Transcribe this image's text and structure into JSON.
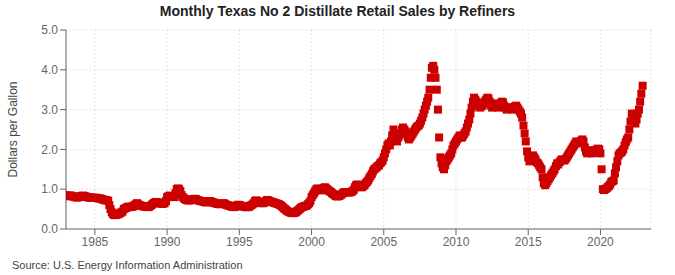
{
  "chart_data": {
    "type": "scatter",
    "title": "Monthly Texas No 2 Distillate Retail Sales by Refiners",
    "ylabel": "Dollars per Gallon",
    "annotations": [
      "Source: U.S. Energy Information Administration"
    ],
    "color": "#cc0000",
    "marker": "square",
    "grid": true,
    "xlim": [
      1983.0,
      2023.5
    ],
    "xticks": [
      1985,
      1990,
      1995,
      2000,
      2005,
      2010,
      2015,
      2020
    ],
    "ylim": [
      0.0,
      5.0
    ],
    "yticks": [
      {
        "value": 0.0,
        "label": "0.0"
      },
      {
        "value": 1.0,
        "label": "1.0"
      },
      {
        "value": 2.0,
        "label": "2.0"
      },
      {
        "value": 3.0,
        "label": "3.0"
      },
      {
        "value": 4.0,
        "label": "4.0"
      },
      {
        "value": 5.0,
        "label": "5.0"
      }
    ],
    "x": [
      1983.0,
      1983.08,
      1983.17,
      1983.25,
      1983.33,
      1983.42,
      1983.5,
      1983.58,
      1983.67,
      1983.75,
      1983.83,
      1983.92,
      1984.0,
      1984.08,
      1984.17,
      1984.25,
      1984.33,
      1984.42,
      1984.5,
      1984.58,
      1984.67,
      1984.75,
      1984.83,
      1984.92,
      1985.0,
      1985.08,
      1985.17,
      1985.25,
      1985.33,
      1985.42,
      1985.5,
      1985.58,
      1985.67,
      1985.75,
      1985.83,
      1985.92,
      1986.0,
      1986.08,
      1986.17,
      1986.25,
      1986.33,
      1986.42,
      1986.5,
      1986.58,
      1986.67,
      1986.75,
      1986.83,
      1986.92,
      1987.0,
      1987.08,
      1987.17,
      1987.25,
      1987.33,
      1987.42,
      1987.5,
      1987.58,
      1987.67,
      1987.75,
      1987.83,
      1987.92,
      1988.0,
      1988.08,
      1988.17,
      1988.25,
      1988.33,
      1988.42,
      1988.5,
      1988.58,
      1988.67,
      1988.75,
      1988.83,
      1988.92,
      1989.0,
      1989.08,
      1989.17,
      1989.25,
      1989.33,
      1989.42,
      1989.5,
      1989.58,
      1989.67,
      1989.75,
      1989.83,
      1989.92,
      1990.0,
      1990.08,
      1990.17,
      1990.25,
      1990.33,
      1990.42,
      1990.5,
      1990.58,
      1990.67,
      1990.75,
      1990.83,
      1990.92,
      1991.0,
      1991.08,
      1991.17,
      1991.25,
      1991.33,
      1991.42,
      1991.5,
      1991.58,
      1991.67,
      1991.75,
      1991.83,
      1991.92,
      1992.0,
      1992.08,
      1992.17,
      1992.25,
      1992.33,
      1992.42,
      1992.5,
      1992.58,
      1992.67,
      1992.75,
      1992.83,
      1992.92,
      1993.0,
      1993.08,
      1993.17,
      1993.25,
      1993.33,
      1993.42,
      1993.5,
      1993.58,
      1993.67,
      1993.75,
      1993.83,
      1993.92,
      1994.0,
      1994.08,
      1994.17,
      1994.25,
      1994.33,
      1994.42,
      1994.5,
      1994.58,
      1994.67,
      1994.75,
      1994.83,
      1994.92,
      1995.0,
      1995.08,
      1995.17,
      1995.25,
      1995.33,
      1995.42,
      1995.5,
      1995.58,
      1995.67,
      1995.75,
      1995.83,
      1995.92,
      1996.0,
      1996.08,
      1996.17,
      1996.25,
      1996.33,
      1996.42,
      1996.5,
      1996.58,
      1996.67,
      1996.75,
      1996.83,
      1996.92,
      1997.0,
      1997.08,
      1997.17,
      1997.25,
      1997.33,
      1997.42,
      1997.5,
      1997.58,
      1997.67,
      1997.75,
      1997.83,
      1997.92,
      1998.0,
      1998.08,
      1998.17,
      1998.25,
      1998.33,
      1998.42,
      1998.5,
      1998.58,
      1998.67,
      1998.75,
      1998.83,
      1998.92,
      1999.0,
      1999.08,
      1999.17,
      1999.25,
      1999.33,
      1999.42,
      1999.5,
      1999.58,
      1999.67,
      1999.75,
      1999.83,
      1999.92,
      2000.0,
      2000.08,
      2000.17,
      2000.25,
      2000.33,
      2000.42,
      2000.5,
      2000.58,
      2000.67,
      2000.75,
      2000.83,
      2000.92,
      2001.0,
      2001.08,
      2001.17,
      2001.25,
      2001.33,
      2001.42,
      2001.5,
      2001.58,
      2001.67,
      2001.75,
      2001.83,
      2001.92,
      2002.0,
      2002.08,
      2002.17,
      2002.25,
      2002.33,
      2002.42,
      2002.5,
      2002.58,
      2002.67,
      2002.75,
      2002.83,
      2002.92,
      2003.0,
      2003.08,
      2003.17,
      2003.25,
      2003.33,
      2003.42,
      2003.5,
      2003.58,
      2003.67,
      2003.75,
      2003.83,
      2003.92,
      2004.0,
      2004.08,
      2004.17,
      2004.25,
      2004.33,
      2004.42,
      2004.5,
      2004.58,
      2004.67,
      2004.75,
      2004.83,
      2004.92,
      2005.0,
      2005.08,
      2005.17,
      2005.25,
      2005.33,
      2005.42,
      2005.5,
      2005.58,
      2005.67,
      2005.75,
      2005.83,
      2005.92,
      2006.0,
      2006.08,
      2006.17,
      2006.25,
      2006.33,
      2006.42,
      2006.5,
      2006.58,
      2006.67,
      2006.75,
      2006.83,
      2006.92,
      2007.0,
      2007.08,
      2007.17,
      2007.25,
      2007.33,
      2007.42,
      2007.5,
      2007.58,
      2007.67,
      2007.75,
      2007.83,
      2007.92,
      2008.0,
      2008.08,
      2008.17,
      2008.25,
      2008.33,
      2008.42,
      2008.5,
      2008.58,
      2008.67,
      2008.75,
      2008.83,
      2008.92,
      2009.0,
      2009.08,
      2009.17,
      2009.25,
      2009.33,
      2009.42,
      2009.5,
      2009.58,
      2009.67,
      2009.75,
      2009.83,
      2009.92,
      2010.0,
      2010.08,
      2010.17,
      2010.25,
      2010.33,
      2010.42,
      2010.5,
      2010.58,
      2010.67,
      2010.75,
      2010.83,
      2010.92,
      2011.0,
      2011.08,
      2011.17,
      2011.25,
      2011.33,
      2011.42,
      2011.5,
      2011.58,
      2011.67,
      2011.75,
      2011.83,
      2011.92,
      2012.0,
      2012.08,
      2012.17,
      2012.25,
      2012.33,
      2012.42,
      2012.5,
      2012.58,
      2012.67,
      2012.75,
      2012.83,
      2012.92,
      2013.0,
      2013.08,
      2013.17,
      2013.25,
      2013.33,
      2013.42,
      2013.5,
      2013.58,
      2013.67,
      2013.75,
      2013.83,
      2013.92,
      2014.0,
      2014.08,
      2014.17,
      2014.25,
      2014.33,
      2014.42,
      2014.5,
      2014.58,
      2014.67,
      2014.75,
      2014.83,
      2014.92,
      2015.0,
      2015.08,
      2015.17,
      2015.25,
      2015.33,
      2015.42,
      2015.5,
      2015.58,
      2015.67,
      2015.75,
      2015.83,
      2015.92,
      2016.0,
      2016.08,
      2016.17,
      2016.25,
      2016.33,
      2016.42,
      2016.5,
      2016.58,
      2016.67,
      2016.75,
      2016.83,
      2016.92,
      2017.0,
      2017.08,
      2017.17,
      2017.25,
      2017.33,
      2017.42,
      2017.5,
      2017.58,
      2017.67,
      2017.75,
      2017.83,
      2017.92,
      2018.0,
      2018.08,
      2018.17,
      2018.25,
      2018.33,
      2018.42,
      2018.5,
      2018.58,
      2018.67,
      2018.75,
      2018.83,
      2018.92,
      2019.0,
      2019.08,
      2019.17,
      2019.25,
      2019.33,
      2019.42,
      2019.5,
      2019.58,
      2019.67,
      2019.75,
      2019.83,
      2019.92,
      2020.0,
      2020.08,
      2020.17,
      2020.25,
      2020.33,
      2020.42,
      2020.5,
      2020.58,
      2020.67,
      2020.75,
      2020.83,
      2020.92,
      2021.0,
      2021.08,
      2021.17,
      2021.25,
      2021.33,
      2021.42,
      2021.5,
      2021.58,
      2021.67,
      2021.75,
      2021.83,
      2021.92,
      2022.0,
      2022.08,
      2022.17,
      2022.25,
      2022.33,
      2022.42,
      2022.5,
      2022.58,
      2022.67,
      2022.75,
      2022.83,
      2022.92
    ],
    "values": [
      0.85,
      0.83,
      0.82,
      0.84,
      0.84,
      0.83,
      0.82,
      0.81,
      0.8,
      0.79,
      0.8,
      0.8,
      0.82,
      0.83,
      0.84,
      0.83,
      0.82,
      0.81,
      0.8,
      0.79,
      0.79,
      0.79,
      0.78,
      0.78,
      0.79,
      0.78,
      0.78,
      0.77,
      0.77,
      0.76,
      0.75,
      0.74,
      0.72,
      0.73,
      0.72,
      0.71,
      0.6,
      0.5,
      0.42,
      0.38,
      0.35,
      0.35,
      0.36,
      0.37,
      0.38,
      0.4,
      0.42,
      0.44,
      0.5,
      0.52,
      0.53,
      0.55,
      0.56,
      0.56,
      0.55,
      0.56,
      0.57,
      0.6,
      0.62,
      0.65,
      0.62,
      0.6,
      0.59,
      0.58,
      0.57,
      0.57,
      0.56,
      0.56,
      0.55,
      0.56,
      0.58,
      0.6,
      0.63,
      0.65,
      0.67,
      0.68,
      0.67,
      0.66,
      0.65,
      0.64,
      0.63,
      0.64,
      0.65,
      0.7,
      0.8,
      0.82,
      0.84,
      0.83,
      0.82,
      0.81,
      0.8,
      0.9,
      1.0,
      1.02,
      1.0,
      0.95,
      0.85,
      0.8,
      0.77,
      0.75,
      0.73,
      0.72,
      0.72,
      0.72,
      0.73,
      0.74,
      0.75,
      0.76,
      0.75,
      0.73,
      0.72,
      0.71,
      0.7,
      0.7,
      0.69,
      0.68,
      0.67,
      0.67,
      0.68,
      0.7,
      0.7,
      0.68,
      0.67,
      0.66,
      0.65,
      0.64,
      0.63,
      0.63,
      0.62,
      0.63,
      0.64,
      0.65,
      0.63,
      0.61,
      0.6,
      0.59,
      0.58,
      0.57,
      0.56,
      0.56,
      0.55,
      0.57,
      0.59,
      0.61,
      0.6,
      0.59,
      0.58,
      0.57,
      0.56,
      0.55,
      0.55,
      0.55,
      0.56,
      0.58,
      0.6,
      0.62,
      0.65,
      0.7,
      0.72,
      0.7,
      0.68,
      0.67,
      0.65,
      0.65,
      0.65,
      0.67,
      0.7,
      0.73,
      0.72,
      0.7,
      0.69,
      0.68,
      0.67,
      0.66,
      0.65,
      0.64,
      0.63,
      0.62,
      0.6,
      0.58,
      0.55,
      0.52,
      0.5,
      0.47,
      0.45,
      0.43,
      0.42,
      0.41,
      0.4,
      0.4,
      0.41,
      0.42,
      0.45,
      0.47,
      0.5,
      0.53,
      0.55,
      0.56,
      0.57,
      0.58,
      0.59,
      0.62,
      0.65,
      0.7,
      0.8,
      0.85,
      0.9,
      0.95,
      1.0,
      1.02,
      1.0,
      0.98,
      0.97,
      1.0,
      1.02,
      1.05,
      1.02,
      1.0,
      0.97,
      0.95,
      0.93,
      0.9,
      0.88,
      0.86,
      0.83,
      0.82,
      0.82,
      0.83,
      0.85,
      0.87,
      0.9,
      0.92,
      0.93,
      0.93,
      0.92,
      0.92,
      0.92,
      0.93,
      0.95,
      0.98,
      1.05,
      1.1,
      1.12,
      1.1,
      1.08,
      1.05,
      1.05,
      1.08,
      1.1,
      1.15,
      1.18,
      1.22,
      1.28,
      1.33,
      1.38,
      1.45,
      1.5,
      1.52,
      1.55,
      1.58,
      1.6,
      1.65,
      1.68,
      1.72,
      1.8,
      1.9,
      2.0,
      2.1,
      2.15,
      2.1,
      2.2,
      2.35,
      2.5,
      2.4,
      2.3,
      2.2,
      2.3,
      2.35,
      2.4,
      2.5,
      2.55,
      2.5,
      2.45,
      2.4,
      2.3,
      2.25,
      2.3,
      2.35,
      2.4,
      2.45,
      2.5,
      2.55,
      2.58,
      2.6,
      2.65,
      2.72,
      2.8,
      2.9,
      3.0,
      3.1,
      3.2,
      3.3,
      3.5,
      3.8,
      4.05,
      4.1,
      4.0,
      3.8,
      3.5,
      3.0,
      2.3,
      1.8,
      1.65,
      1.55,
      1.5,
      1.6,
      1.7,
      1.75,
      1.8,
      1.85,
      1.9,
      2.0,
      2.1,
      2.15,
      2.2,
      2.25,
      2.3,
      2.35,
      2.3,
      2.3,
      2.35,
      2.4,
      2.45,
      2.55,
      2.65,
      2.75,
      2.9,
      3.05,
      3.2,
      3.3,
      3.25,
      3.2,
      3.15,
      3.1,
      3.05,
      3.08,
      3.1,
      3.15,
      3.2,
      3.25,
      3.3,
      3.28,
      3.2,
      3.1,
      3.05,
      3.1,
      3.15,
      3.15,
      3.1,
      3.05,
      3.1,
      3.15,
      3.2,
      3.18,
      3.1,
      3.05,
      3.0,
      3.02,
      3.05,
      3.05,
      3.05,
      3.0,
      3.05,
      3.08,
      3.1,
      3.05,
      3.0,
      2.95,
      2.9,
      2.8,
      2.6,
      2.4,
      2.2,
      1.95,
      1.8,
      1.7,
      1.75,
      1.8,
      1.85,
      1.8,
      1.75,
      1.68,
      1.65,
      1.6,
      1.55,
      1.5,
      1.3,
      1.15,
      1.1,
      1.15,
      1.2,
      1.25,
      1.3,
      1.35,
      1.4,
      1.45,
      1.5,
      1.58,
      1.65,
      1.62,
      1.68,
      1.72,
      1.75,
      1.73,
      1.72,
      1.75,
      1.8,
      1.85,
      1.9,
      1.95,
      2.0,
      2.05,
      2.1,
      2.15,
      2.2,
      2.18,
      2.15,
      2.18,
      2.22,
      2.25,
      2.2,
      2.05,
      1.95,
      1.9,
      1.95,
      1.98,
      1.95,
      1.9,
      1.92,
      1.95,
      1.98,
      2.0,
      2.02,
      2.0,
      1.9,
      1.5,
      1.0,
      0.98,
      1.0,
      1.02,
      1.05,
      1.08,
      1.12,
      1.18,
      1.2,
      1.22,
      1.4,
      1.55,
      1.7,
      1.85,
      1.9,
      1.92,
      1.95,
      2.0,
      2.1,
      2.18,
      2.25,
      2.3,
      2.5,
      2.7,
      2.9,
      2.8,
      2.7,
      2.65,
      2.75,
      2.9,
      3.0,
      3.2,
      3.4,
      3.6
    ]
  }
}
